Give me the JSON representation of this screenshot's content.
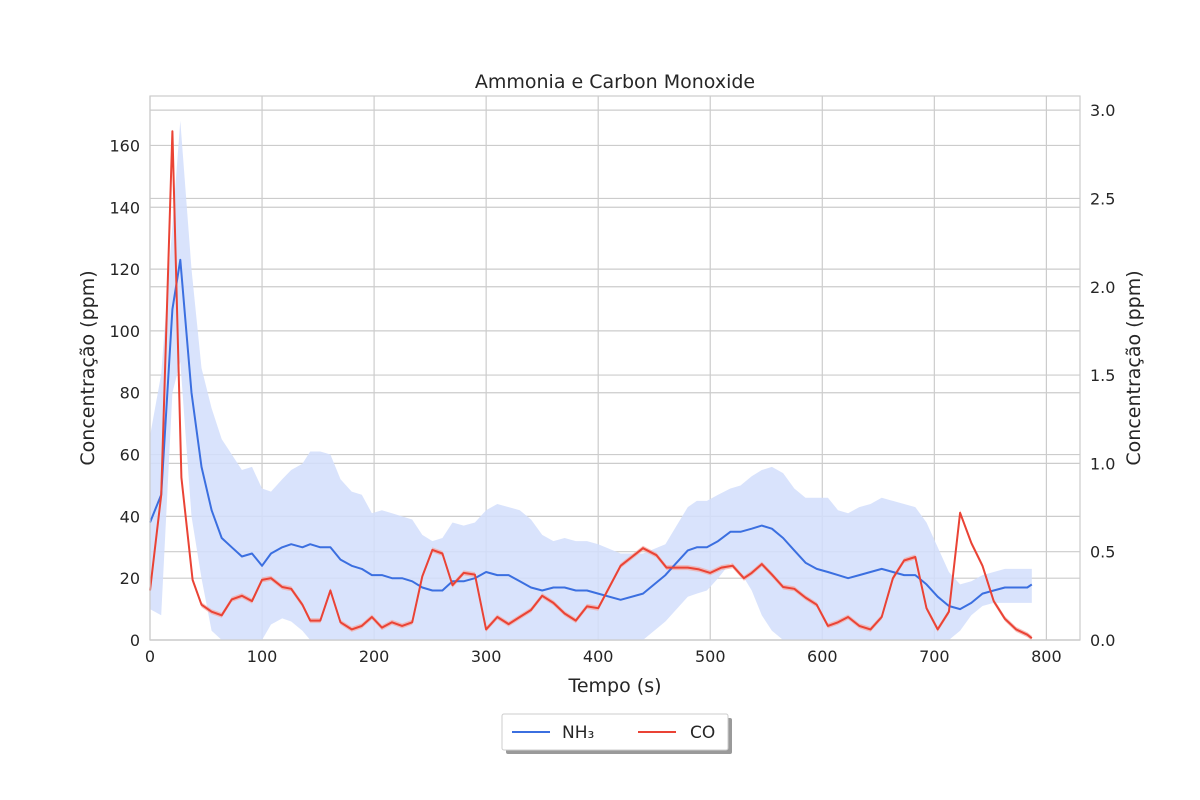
{
  "chart_data": {
    "type": "line",
    "title": "Ammonia e Carbon Monoxide",
    "xlabel": "Tempo (s)",
    "ylabel_left": "Concentração (ppm)",
    "ylabel_right": "Concentração (ppm)",
    "xlim": [
      0,
      830
    ],
    "ylim_left": [
      0,
      176
    ],
    "ylim_right": [
      0,
      3.08
    ],
    "xticks": [
      "0",
      "100",
      "200",
      "300",
      "400",
      "500",
      "600",
      "700",
      "800"
    ],
    "yticks_left": [
      "0",
      "20",
      "40",
      "60",
      "80",
      "100",
      "120",
      "140",
      "160"
    ],
    "yticks_right": [
      "0.0",
      "0.5",
      "1.0",
      "1.5",
      "2.0",
      "2.5",
      "3.0"
    ],
    "grid": true,
    "legend_position": "bottom-center (below axes)",
    "colors": {
      "nh3": "#3b6fe0",
      "nh3_band": "#d2defb",
      "co": "#ea4335",
      "co_band": "#f4a7a1",
      "grid": "#cccccc"
    },
    "series": [
      {
        "name": "NH₃",
        "axis": "left",
        "x": [
          0,
          10,
          20,
          27,
          37,
          46,
          55,
          64,
          73,
          82,
          91,
          100,
          108,
          118,
          126,
          136,
          143,
          152,
          161,
          170,
          180,
          189,
          198,
          207,
          216,
          225,
          234,
          243,
          252,
          261,
          270,
          280,
          290,
          300,
          310,
          320,
          330,
          340,
          350,
          360,
          370,
          380,
          390,
          400,
          420,
          440,
          460,
          470,
          480,
          488,
          497,
          507,
          518,
          527,
          537,
          546,
          555,
          565,
          575,
          585,
          595,
          605,
          614,
          623,
          633,
          643,
          653,
          663,
          673,
          683,
          693,
          703,
          713,
          723,
          733,
          743,
          753,
          763,
          773,
          783,
          787
        ],
        "y": [
          38,
          47,
          107,
          123,
          80,
          56,
          42,
          33,
          30,
          27,
          28,
          24,
          28,
          30,
          31,
          30,
          31,
          30,
          30,
          26,
          24,
          23,
          21,
          21,
          20,
          20,
          19,
          17,
          16,
          16,
          19,
          19,
          20,
          22,
          21,
          21,
          19,
          17,
          16,
          17,
          17,
          16,
          16,
          15,
          13,
          15,
          21,
          25,
          29,
          30,
          30,
          32,
          35,
          35,
          36,
          37,
          36,
          33,
          29,
          25,
          23,
          22,
          21,
          20,
          21,
          22,
          23,
          22,
          21,
          21,
          18,
          14,
          11,
          10,
          12,
          15,
          16,
          17,
          17,
          17,
          18
        ],
        "ci_low": [
          10,
          8,
          80,
          90,
          40,
          20,
          3,
          0,
          0,
          0,
          0,
          0,
          5,
          7,
          6,
          3,
          0,
          0,
          0,
          0,
          0,
          0,
          0,
          0,
          0,
          0,
          0,
          0,
          0,
          0,
          0,
          0,
          0,
          0,
          0,
          0,
          0,
          0,
          0,
          0,
          0,
          0,
          0,
          0,
          0,
          0,
          6,
          10,
          14,
          15,
          16,
          20,
          25,
          22,
          16,
          8,
          3,
          0,
          0,
          0,
          0,
          0,
          0,
          0,
          0,
          0,
          0,
          0,
          0,
          0,
          0,
          0,
          0,
          3,
          8,
          11,
          12,
          12,
          12,
          12,
          12
        ],
        "ci_high": [
          66,
          86,
          134,
          168,
          120,
          88,
          75,
          65,
          60,
          55,
          56,
          49,
          48,
          52,
          55,
          57,
          61,
          61,
          60,
          52,
          48,
          47,
          41,
          42,
          41,
          40,
          39,
          34,
          32,
          33,
          38,
          37,
          38,
          42,
          44,
          43,
          42,
          39,
          34,
          32,
          33,
          32,
          32,
          31,
          28,
          28,
          31,
          37,
          43,
          45,
          45,
          47,
          49,
          50,
          53,
          55,
          56,
          54,
          49,
          46,
          46,
          46,
          42,
          41,
          43,
          44,
          46,
          45,
          44,
          43,
          38,
          30,
          22,
          18,
          19,
          21,
          22,
          23,
          23,
          23,
          23
        ]
      },
      {
        "name": "CO",
        "axis": "right",
        "x": [
          0,
          10,
          20,
          28,
          38,
          46,
          55,
          64,
          73,
          82,
          91,
          100,
          108,
          118,
          126,
          136,
          143,
          152,
          161,
          170,
          180,
          189,
          198,
          207,
          216,
          225,
          234,
          243,
          252,
          261,
          270,
          280,
          290,
          300,
          310,
          320,
          330,
          340,
          350,
          360,
          370,
          380,
          390,
          400,
          420,
          430,
          440,
          452,
          461,
          470,
          480,
          490,
          500,
          510,
          520,
          530,
          537,
          546,
          555,
          565,
          575,
          585,
          595,
          605,
          614,
          623,
          633,
          643,
          653,
          663,
          673,
          683,
          693,
          703,
          713,
          723,
          733,
          743,
          753,
          763,
          773,
          783,
          787
        ],
        "y": [
          0.28,
          0.82,
          2.88,
          0.92,
          0.34,
          0.2,
          0.16,
          0.14,
          0.23,
          0.25,
          0.22,
          0.34,
          0.35,
          0.3,
          0.29,
          0.2,
          0.11,
          0.11,
          0.28,
          0.1,
          0.06,
          0.08,
          0.13,
          0.07,
          0.1,
          0.08,
          0.1,
          0.36,
          0.51,
          0.49,
          0.31,
          0.38,
          0.37,
          0.06,
          0.13,
          0.09,
          0.13,
          0.17,
          0.25,
          0.21,
          0.15,
          0.11,
          0.19,
          0.18,
          0.42,
          0.47,
          0.52,
          0.48,
          0.41,
          0.41,
          0.41,
          0.4,
          0.38,
          0.41,
          0.42,
          0.35,
          0.38,
          0.43,
          0.37,
          0.3,
          0.29,
          0.24,
          0.2,
          0.08,
          0.1,
          0.13,
          0.08,
          0.06,
          0.13,
          0.35,
          0.45,
          0.47,
          0.18,
          0.06,
          0.16,
          0.72,
          0.55,
          0.42,
          0.22,
          0.12,
          0.06,
          0.03,
          0.01
        ]
      }
    ]
  },
  "legend": {
    "items": [
      {
        "label": "NH₃",
        "color": "#3b6fe0"
      },
      {
        "label": "CO",
        "color": "#ea4335"
      }
    ]
  }
}
